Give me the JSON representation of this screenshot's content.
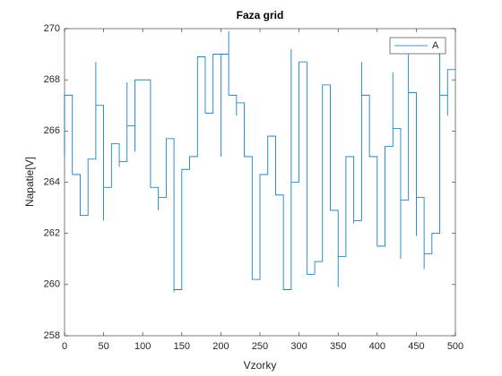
{
  "chart_data": {
    "type": "line",
    "title": "Faza grid",
    "x_label": "Vzorky",
    "y_label": "Napatie[V]",
    "xlim": [
      0,
      500
    ],
    "xticks": [
      0,
      50,
      100,
      150,
      200,
      250,
      300,
      350,
      400,
      450,
      500
    ],
    "ylim": [
      258,
      270
    ],
    "yticks": [
      258,
      260,
      262,
      264,
      266,
      268,
      270
    ],
    "legend": "upper right",
    "series": [
      {
        "name": "A",
        "color": "#0072bd",
        "x": [
          0,
          0,
          10,
          10,
          20,
          20,
          30,
          30,
          40,
          40,
          40,
          50,
          50,
          50,
          60,
          60,
          70,
          70,
          70,
          80,
          80,
          80,
          90,
          90,
          90,
          100,
          110,
          110,
          120,
          120,
          120,
          130,
          130,
          140,
          140,
          140,
          150,
          150,
          160,
          160,
          170,
          170,
          180,
          180,
          190,
          190,
          200,
          200,
          200,
          210,
          210,
          210,
          220,
          220,
          220,
          230,
          230,
          240,
          240,
          250,
          250,
          260,
          260,
          270,
          270,
          280,
          280,
          290,
          290,
          290,
          300,
          300,
          310,
          310,
          320,
          320,
          330,
          330,
          340,
          340,
          350,
          350,
          350,
          360,
          360,
          370,
          370,
          370,
          380,
          380,
          380,
          390,
          390,
          400,
          400,
          410,
          410,
          420,
          420,
          420,
          430,
          430,
          430,
          440,
          440,
          440,
          450,
          450,
          450,
          460,
          460,
          460,
          470,
          470,
          480,
          480,
          480,
          490,
          490,
          490,
          500
        ],
        "values": [
          265,
          267.4,
          267.4,
          264.3,
          264.3,
          262.7,
          262.7,
          264.9,
          264.9,
          268.7,
          267.0,
          267.0,
          262.5,
          263.8,
          263.8,
          265.5,
          265.5,
          264.6,
          264.8,
          264.8,
          267.9,
          266.2,
          266.2,
          265.2,
          268.0,
          268.0,
          268.0,
          263.8,
          263.8,
          262.9,
          263.4,
          263.4,
          265.7,
          265.7,
          259.7,
          259.8,
          259.8,
          264.5,
          264.5,
          265.0,
          265.0,
          268.9,
          268.9,
          266.7,
          266.7,
          269.0,
          269.0,
          265.0,
          269.0,
          269.0,
          269.9,
          267.4,
          267.4,
          266.6,
          267.1,
          267.1,
          265.0,
          265.0,
          260.2,
          260.2,
          264.3,
          264.3,
          265.8,
          265.8,
          263.5,
          263.5,
          259.8,
          259.8,
          269.2,
          264.0,
          264.0,
          268.7,
          268.7,
          260.4,
          260.4,
          260.9,
          260.9,
          267.8,
          267.8,
          262.9,
          262.9,
          259.9,
          261.1,
          261.1,
          265.0,
          265.0,
          262.4,
          262.5,
          262.5,
          268.7,
          267.4,
          267.4,
          265.0,
          265.0,
          261.5,
          261.5,
          265.4,
          265.4,
          268.3,
          266.1,
          266.1,
          261.0,
          263.3,
          263.3,
          269.0,
          267.5,
          267.5,
          261.9,
          263.4,
          263.4,
          260.6,
          261.2,
          261.2,
          262.0,
          262.0,
          269.1,
          267.4,
          267.4,
          266.6,
          268.4,
          268.4
        ]
      }
    ]
  }
}
